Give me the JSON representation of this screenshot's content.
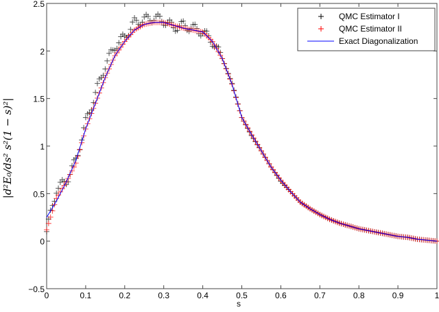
{
  "chart_data": {
    "type": "scatter",
    "title": "",
    "xlabel": "s",
    "ylabel": "|d²E₀/ds² s²(1 − s)²|",
    "xlim": [
      0,
      1
    ],
    "ylim": [
      -0.5,
      2.5
    ],
    "xticks": [
      "0",
      "0.1",
      "0.2",
      "0.3",
      "0.4",
      "0.5",
      "0.6",
      "0.7",
      "0.8",
      "0.9",
      "1"
    ],
    "yticks": [
      "-0.5",
      "0",
      "0.5",
      "1",
      "1.5",
      "2",
      "2.5"
    ],
    "grid": false,
    "legend_position": "upper right",
    "x": [
      0.0,
      0.025,
      0.05,
      0.075,
      0.1,
      0.125,
      0.15,
      0.175,
      0.2,
      0.225,
      0.25,
      0.275,
      0.3,
      0.325,
      0.35,
      0.375,
      0.4,
      0.425,
      0.45,
      0.475,
      0.5,
      0.525,
      0.55,
      0.575,
      0.6,
      0.625,
      0.65,
      0.675,
      0.7,
      0.725,
      0.75,
      0.775,
      0.8,
      0.825,
      0.85,
      0.875,
      0.9,
      0.925,
      0.95,
      0.975,
      1.0
    ],
    "series": [
      {
        "name": "QMC Estimator I",
        "marker": "+",
        "color": "#000000",
        "values": [
          0.1,
          0.55,
          0.63,
          0.85,
          1.25,
          1.55,
          1.85,
          2.05,
          2.15,
          2.3,
          2.33,
          2.35,
          2.32,
          2.25,
          2.27,
          2.24,
          2.2,
          2.1,
          1.92,
          1.66,
          1.3,
          1.11,
          0.95,
          0.78,
          0.63,
          0.52,
          0.41,
          0.34,
          0.28,
          0.23,
          0.19,
          0.16,
          0.13,
          0.11,
          0.09,
          0.07,
          0.05,
          0.04,
          0.02,
          0.01,
          0.0
        ]
      },
      {
        "name": "QMC Estimator II",
        "marker": "+",
        "color": "#ff0000",
        "values": [
          0.12,
          0.45,
          0.62,
          0.82,
          1.18,
          1.45,
          1.72,
          1.95,
          2.1,
          2.22,
          2.28,
          2.3,
          2.3,
          2.27,
          2.24,
          2.22,
          2.2,
          2.1,
          1.92,
          1.65,
          1.3,
          1.12,
          0.95,
          0.78,
          0.64,
          0.52,
          0.41,
          0.34,
          0.28,
          0.23,
          0.19,
          0.16,
          0.13,
          0.11,
          0.09,
          0.07,
          0.05,
          0.04,
          0.02,
          0.01,
          0.0
        ]
      },
      {
        "name": "Exact Diagonalization",
        "marker": "line",
        "color": "#0000ff",
        "values": [
          0.25,
          0.42,
          0.62,
          0.85,
          1.18,
          1.45,
          1.72,
          1.95,
          2.1,
          2.22,
          2.28,
          2.3,
          2.3,
          2.27,
          2.24,
          2.22,
          2.2,
          2.1,
          1.92,
          1.65,
          1.3,
          1.12,
          0.95,
          0.78,
          0.64,
          0.52,
          0.41,
          0.34,
          0.28,
          0.23,
          0.19,
          0.16,
          0.13,
          0.11,
          0.09,
          0.07,
          0.05,
          0.04,
          0.02,
          0.01,
          0.0
        ]
      }
    ]
  },
  "legend": {
    "items": [
      {
        "label": "QMC Estimator I",
        "symbol": "+",
        "color": "#000000"
      },
      {
        "label": "QMC Estimator II",
        "symbol": "+",
        "color": "#ff0000"
      },
      {
        "label": "Exact Diagonalization",
        "symbol": "line",
        "color": "#0000ff"
      }
    ]
  },
  "axes": {
    "xlabel": "s",
    "ylabel": "|d²E₀/ds² s²(1 − s)²|"
  }
}
